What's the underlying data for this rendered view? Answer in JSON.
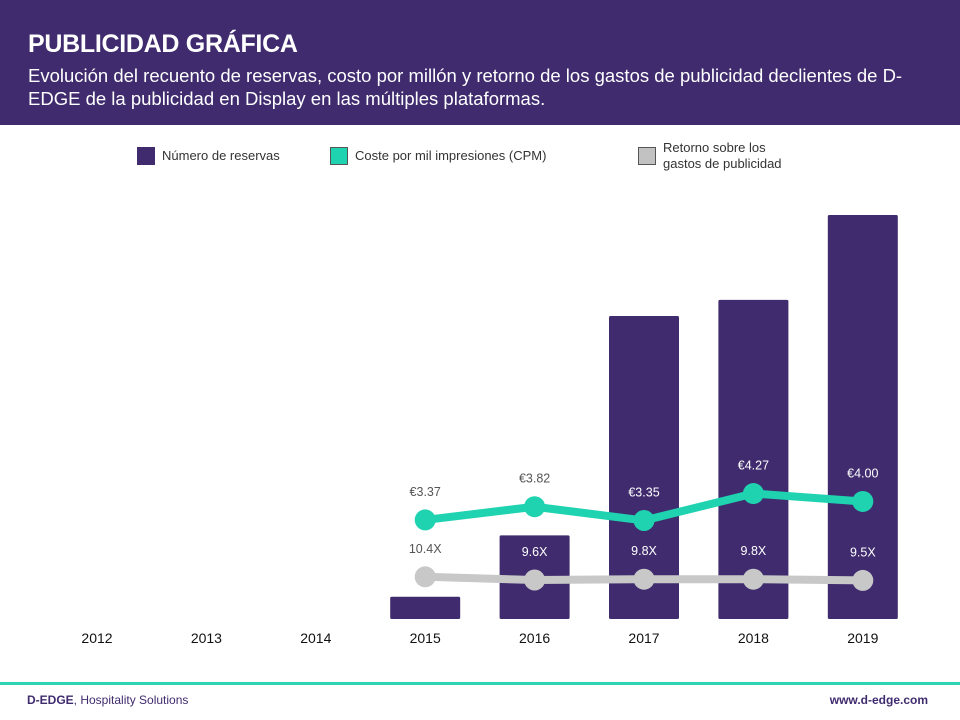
{
  "header": {
    "title": "PUBLICIDAD GRÁFICA",
    "subtitle": "Evolución del recuento de reservas, costo por millón y retorno de los gastos de publicidad declientes de D-EDGE de la publicidad en Display en las múltiples plataformas."
  },
  "legend": {
    "bookings": "Número de reservas",
    "cpm": "Coste por mil impresiones (CPM)",
    "roas_line1": "Retorno sobre los",
    "roas_line2": "gastos de publicidad"
  },
  "colors": {
    "brand_purple": "#3f2b6e",
    "bar": "#3f2b6e",
    "cpm_line": "#1fd3b0",
    "roas_line": "#c8c8c8",
    "footer_accent": "#2ed3b3"
  },
  "chart_data": {
    "type": "bar",
    "categories": [
      "2012",
      "2013",
      "2014",
      "2015",
      "2016",
      "2017",
      "2018",
      "2019"
    ],
    "y_unit": "relative (no axis printed)",
    "ylim": [
      0,
      100
    ],
    "grid": false,
    "legend_position": "top",
    "series": [
      {
        "name": "Número de reservas",
        "type": "bar",
        "values": [
          0,
          0,
          0,
          5.5,
          20.7,
          75,
          79,
          100
        ]
      },
      {
        "name": "Coste por mil impresiones (CPM)",
        "type": "line",
        "values": [
          null,
          null,
          null,
          3.37,
          3.82,
          3.35,
          4.27,
          4.0
        ],
        "labels": [
          null,
          null,
          null,
          "€3.37",
          "€3.82",
          "€3.35",
          "€4.27",
          "€4.00"
        ]
      },
      {
        "name": "Retorno sobre los gastos de publicidad",
        "type": "line",
        "values": [
          null,
          null,
          null,
          10.4,
          9.6,
          9.8,
          9.8,
          9.5
        ],
        "labels": [
          null,
          null,
          null,
          "10.4X",
          "9.6X",
          "9.8X",
          "9.8X",
          "9.5X"
        ]
      }
    ]
  },
  "footer": {
    "brand": "D-EDGE",
    "tagline": ", Hospitality Solutions",
    "url": "www.d-edge.com"
  }
}
